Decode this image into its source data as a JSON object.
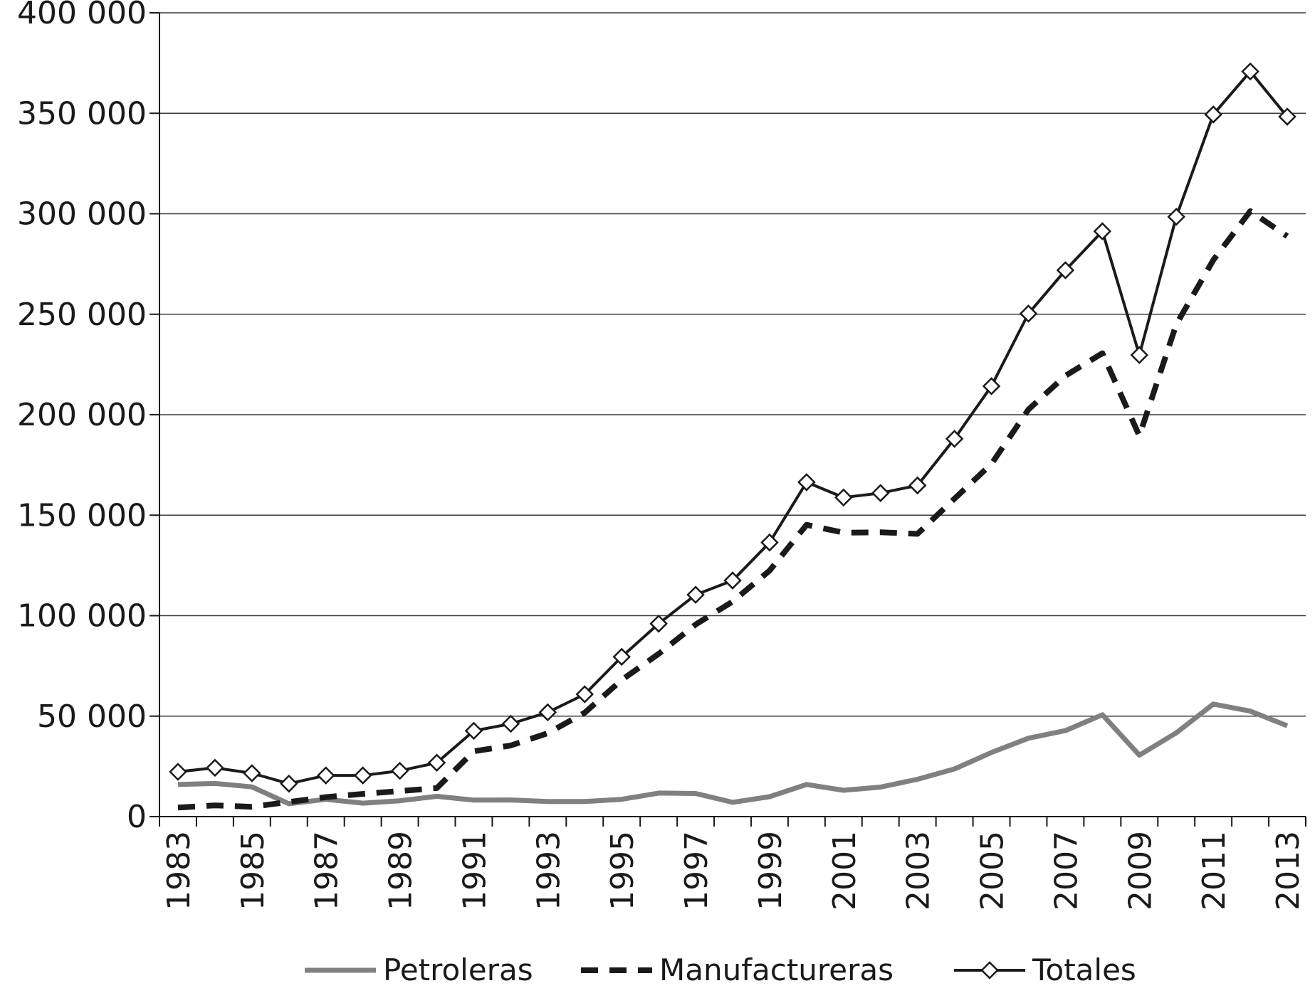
{
  "chart_data": {
    "type": "line",
    "title": "",
    "xlabel": "",
    "ylabel": "",
    "x": [
      1983,
      1984,
      1985,
      1986,
      1987,
      1988,
      1989,
      1990,
      1991,
      1992,
      1993,
      1994,
      1995,
      1996,
      1997,
      1998,
      1999,
      2000,
      2001,
      2002,
      2003,
      2004,
      2005,
      2006,
      2007,
      2008,
      2009,
      2010,
      2011,
      2012,
      2013
    ],
    "xlim": [
      1982.5,
      2013.5
    ],
    "ylim": [
      0,
      400000
    ],
    "yticks": [
      0,
      50000,
      100000,
      150000,
      200000,
      250000,
      300000,
      350000,
      400000
    ],
    "ytick_labels": [
      "0",
      "50 000",
      "100 000",
      "150 000",
      "200 000",
      "250 000",
      "300 000",
      "350 000",
      "400 000"
    ],
    "xtick_labels": [
      "1983",
      "1985",
      "1987",
      "1989",
      "1991",
      "1993",
      "1995",
      "1997",
      "1999",
      "2001",
      "2003",
      "2005",
      "2007",
      "2009",
      "2011",
      "2013"
    ],
    "grid": true,
    "legend_position": "bottom",
    "series": [
      {
        "name": "Petroleras",
        "style": "solid-thick",
        "color": "#808080",
        "values": [
          16000,
          16500,
          14800,
          6400,
          8600,
          6700,
          7900,
          10100,
          8200,
          8300,
          7500,
          7500,
          8600,
          11700,
          11500,
          7100,
          9900,
          16000,
          13100,
          14700,
          18600,
          23700,
          31900,
          39000,
          42800,
          50700,
          30600,
          41700,
          56000,
          52500,
          45200
        ]
      },
      {
        "name": "Manufactureras",
        "style": "dashed",
        "color": "#1a1a1a",
        "values": [
          4500,
          5600,
          4900,
          7300,
          9700,
          11300,
          12700,
          14200,
          32500,
          35400,
          41500,
          51700,
          68000,
          81000,
          95600,
          107000,
          122400,
          145200,
          141300,
          141500,
          140700,
          158200,
          175500,
          202600,
          219400,
          230600,
          189500,
          245000,
          277000,
          301300,
          288800
        ]
      },
      {
        "name": "Totales",
        "style": "solid-diamond",
        "color": "#1a1a1a",
        "values": [
          22300,
          24300,
          21600,
          16400,
          20500,
          20500,
          22800,
          26800,
          42700,
          46200,
          51900,
          60900,
          79500,
          96000,
          110400,
          117500,
          136400,
          166400,
          158800,
          161000,
          164800,
          188000,
          214200,
          250300,
          271900,
          291300,
          229700,
          298500,
          349400,
          370800,
          348300
        ]
      }
    ]
  }
}
